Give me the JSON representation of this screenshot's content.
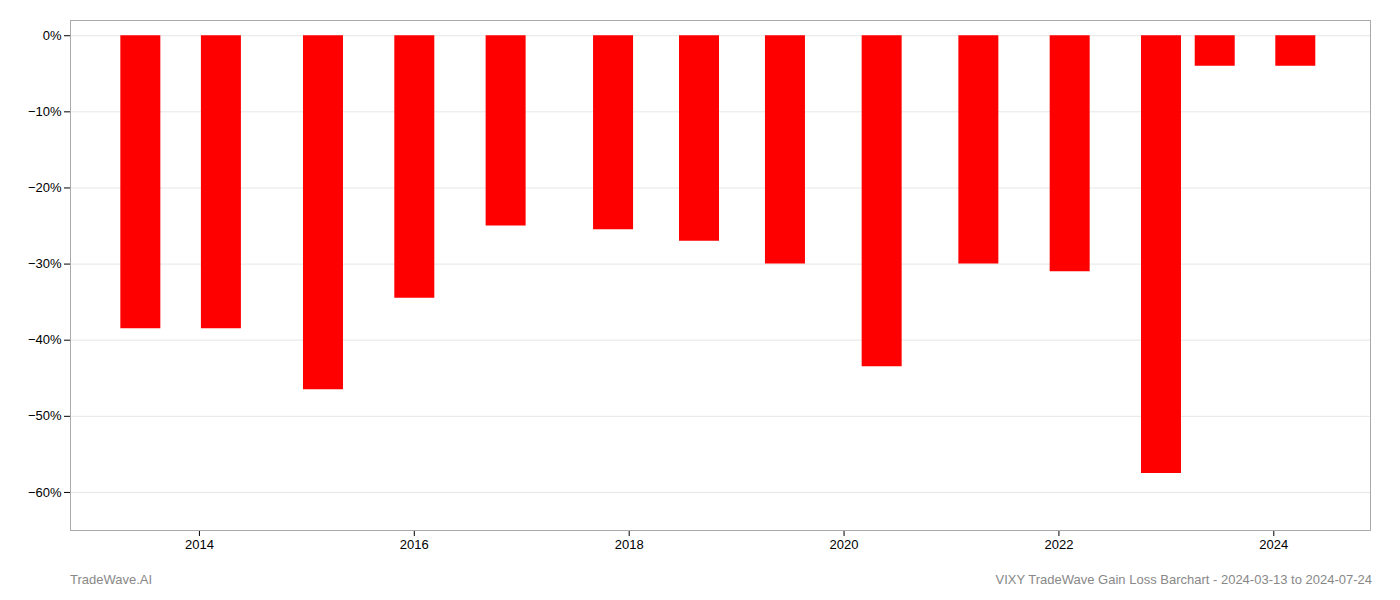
{
  "chart_data": {
    "type": "bar",
    "x": [
      2013.45,
      2014.2,
      2015.15,
      2016.0,
      2016.85,
      2017.85,
      2018.65,
      2019.45,
      2020.35,
      2021.25,
      2022.1,
      2022.95,
      2023.45,
      2024.2
    ],
    "values": [
      -38.5,
      -38.5,
      -46.5,
      -34.5,
      -25.0,
      -25.5,
      -27.0,
      -30.0,
      -43.5,
      -30.0,
      -31.0,
      -57.5,
      -4.0,
      -4.0
    ],
    "color": "#ff0000",
    "xlim": [
      2012.8,
      2024.9
    ],
    "xticks": [
      2014,
      2016,
      2018,
      2020,
      2022,
      2024
    ],
    "ylim": [
      -65,
      2
    ],
    "yticks": [
      {
        "value": 0,
        "label": "0%"
      },
      {
        "value": -10,
        "label": "−10%"
      },
      {
        "value": -20,
        "label": "−20%"
      },
      {
        "value": -30,
        "label": "−30%"
      },
      {
        "value": -40,
        "label": "−40%"
      },
      {
        "value": -50,
        "label": "−50%"
      },
      {
        "value": -60,
        "label": "−60%"
      }
    ],
    "grid": true,
    "annotations": [
      "TradeWave.AI",
      "VIXY TradeWave Gain Loss Barchart - 2024-03-13 to 2024-07-24"
    ]
  }
}
